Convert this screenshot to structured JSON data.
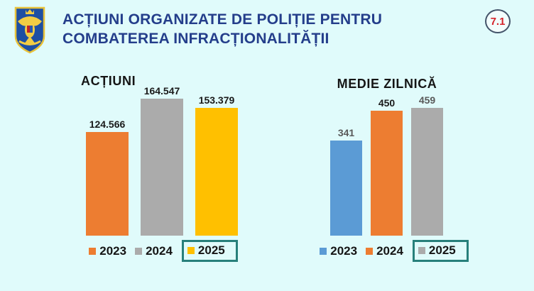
{
  "header": {
    "title_line1": "ACȚIUNI ORGANIZATE DE POLIȚIE PENTRU",
    "title_line2": "COMBATEREA INFRACȚIONALITĂȚII",
    "slide_number": "7.1",
    "logo": "romanian-police-coat-of-arms"
  },
  "colors": {
    "background": "#E0FBFB",
    "title_text": "#243E8B",
    "badge_text": "#D5232B",
    "badge_border": "#44546A",
    "highlight_box_border": "#27807B"
  },
  "chart_data": [
    {
      "type": "bar",
      "title": "ACȚIUNI",
      "categories": [
        "2023",
        "2024",
        "2025"
      ],
      "values": [
        124566,
        164547,
        153379
      ],
      "labels": [
        "124.566",
        "164.547",
        "153.379"
      ],
      "colors": [
        "#ED7D31",
        "#ABABAB",
        "#FFC000"
      ],
      "label_colors": [
        "#1A1A1A",
        "#1A1A1A",
        "#1A1A1A"
      ],
      "highlighted_category": "2025",
      "legend_position": "bottom",
      "ylim": [
        0,
        164547
      ],
      "grid": false,
      "axes_visible": false
    },
    {
      "type": "bar",
      "title": "MEDIE ZILNICĂ",
      "categories": [
        "2023",
        "2024",
        "2025"
      ],
      "values": [
        341,
        450,
        459
      ],
      "labels": [
        "341",
        "450",
        "459"
      ],
      "colors": [
        "#5B9BD5",
        "#ED7D31",
        "#ABABAB"
      ],
      "label_colors": [
        "#595959",
        "#1A1A1A",
        "#595959"
      ],
      "highlighted_category": "2025",
      "legend_position": "bottom",
      "ylim": [
        0,
        459
      ],
      "grid": false,
      "axes_visible": false
    }
  ]
}
